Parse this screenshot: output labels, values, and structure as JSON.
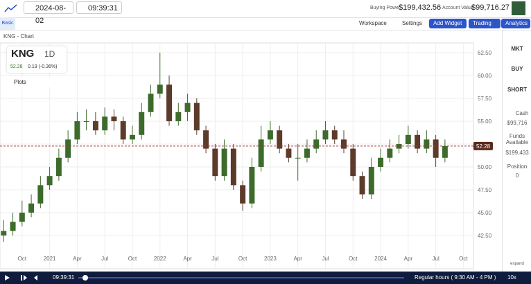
{
  "header": {
    "date": "2024-08-02",
    "time": "09:39:31",
    "buying_power_label": "Buying Power",
    "buying_power": "$199,432.56",
    "account_value_label": "Account Value",
    "account_value": "$99,716.27"
  },
  "toolbar": {
    "tab": "Basic",
    "workspace": "Workspace",
    "settings": "Settings",
    "add_widget": "Add Widget",
    "trading": "Trading",
    "analytics": "Analytics"
  },
  "chart_panel": {
    "title": "KNG - Chart",
    "symbol": "KNG",
    "interval": "1D",
    "change": "0.19 (-0.36%)",
    "plots": "Plots",
    "expand": "expand"
  },
  "chart_data": {
    "type": "candlestick",
    "last_price": 52.28,
    "x": [
      -2,
      -1,
      0,
      1,
      2,
      3,
      4,
      5,
      6,
      7,
      8,
      9,
      10,
      11,
      12,
      13,
      14,
      15,
      16,
      17,
      18,
      19,
      20,
      21,
      22,
      23,
      24,
      25,
      26,
      27,
      28,
      29,
      30,
      31,
      32,
      33,
      34,
      35,
      36,
      37,
      38,
      39,
      40,
      41,
      42,
      43,
      44,
      45,
      46
    ],
    "open": [
      42.5,
      43,
      44,
      45,
      46,
      48,
      49,
      51,
      53,
      55,
      55,
      54,
      55.5,
      55,
      53,
      53.5,
      56,
      58,
      59,
      55,
      56,
      57,
      54,
      52,
      49,
      52,
      48,
      46,
      50,
      53,
      54,
      52,
      51,
      51,
      52,
      53,
      54,
      53,
      52,
      49,
      47,
      50,
      51,
      52,
      52.5,
      53.5,
      52,
      53,
      51
    ],
    "high": [
      44.2,
      45,
      46.3,
      47,
      49,
      50,
      52,
      54,
      56,
      56.3,
      56,
      56.5,
      56.3,
      55.5,
      54.5,
      57,
      59,
      62.5,
      60,
      57,
      58,
      57.5,
      54.5,
      52.5,
      53,
      52.5,
      48.5,
      51,
      54.5,
      55,
      54.5,
      52.5,
      52.5,
      53,
      54,
      55,
      54.5,
      54,
      52.5,
      49.5,
      51,
      52,
      53,
      53.5,
      54.5,
      54,
      54,
      53.5,
      53
    ],
    "low": [
      41.8,
      42.5,
      43.5,
      44.5,
      45.5,
      47.5,
      48.5,
      50.5,
      52.5,
      54,
      53.5,
      53.5,
      54,
      52.5,
      52.5,
      53,
      55.5,
      57.5,
      54.5,
      54.5,
      55,
      53.5,
      51.5,
      48.5,
      48.5,
      47.5,
      45.2,
      45.5,
      49.5,
      52.5,
      51.5,
      50.5,
      48.5,
      50.5,
      51.5,
      52.5,
      52.5,
      51.5,
      48.5,
      46.5,
      46.5,
      49.5,
      50.5,
      51.5,
      52,
      51.5,
      51.5,
      50,
      50.5
    ],
    "close": [
      43,
      44,
      45,
      46,
      48,
      49,
      51,
      53,
      55,
      55,
      54,
      55.5,
      55,
      53,
      53.5,
      56,
      58,
      59,
      55,
      56,
      57,
      54,
      52,
      49,
      52,
      48,
      46,
      50,
      53,
      54,
      52,
      51,
      51,
      52,
      53,
      54,
      53,
      52,
      49,
      47,
      50,
      51,
      52,
      52.5,
      53.5,
      52,
      53,
      51,
      52.28
    ],
    "up_color": "#3d6b2c",
    "down_color": "#5c3b2b",
    "xlim": [
      -2.4,
      49.1
    ],
    "xticks": [
      {
        "value": 0,
        "label": "Oct"
      },
      {
        "value": 3,
        "label": "2021"
      },
      {
        "value": 6,
        "label": "Apr"
      },
      {
        "value": 9,
        "label": "Jul"
      },
      {
        "value": 12,
        "label": "Oct"
      },
      {
        "value": 15,
        "label": "2022"
      },
      {
        "value": 18,
        "label": "Apr"
      },
      {
        "value": 21,
        "label": "Jul"
      },
      {
        "value": 24,
        "label": "Oct"
      },
      {
        "value": 27,
        "label": "2023"
      },
      {
        "value": 30,
        "label": "Apr"
      },
      {
        "value": 33,
        "label": "Jul"
      },
      {
        "value": 36,
        "label": "Oct"
      },
      {
        "value": 39,
        "label": "2024"
      },
      {
        "value": 42,
        "label": "Apr"
      },
      {
        "value": 45,
        "label": "Jul"
      },
      {
        "value": 48,
        "label": "Oct"
      }
    ],
    "ylim": [
      38.86,
      63.56
    ],
    "yticks": [
      {
        "value": 42.5,
        "label": "42.50"
      },
      {
        "value": 45,
        "label": "45.00"
      },
      {
        "value": 47.5,
        "label": "47.50"
      },
      {
        "value": 50,
        "label": "50.00"
      },
      {
        "value": 52.5,
        "label": "52.50"
      },
      {
        "value": 55,
        "label": "55.00"
      },
      {
        "value": 57.5,
        "label": "57.50"
      },
      {
        "value": 60,
        "label": "60.00"
      },
      {
        "value": 62.5,
        "label": "62.50"
      }
    ],
    "grid": true
  },
  "sidebar": {
    "mkt": "MKT",
    "buy": "BUY",
    "short": "SHORT",
    "cash_label": "Cash",
    "cash": "$99,716",
    "funds_label": "Funds Available",
    "funds": "$199,433",
    "position_label": "Position",
    "position": "0"
  },
  "footer": {
    "time": "09:39:31",
    "session": "Regular hours ( 9:30 AM - 4 PM )",
    "speed": "10x"
  }
}
